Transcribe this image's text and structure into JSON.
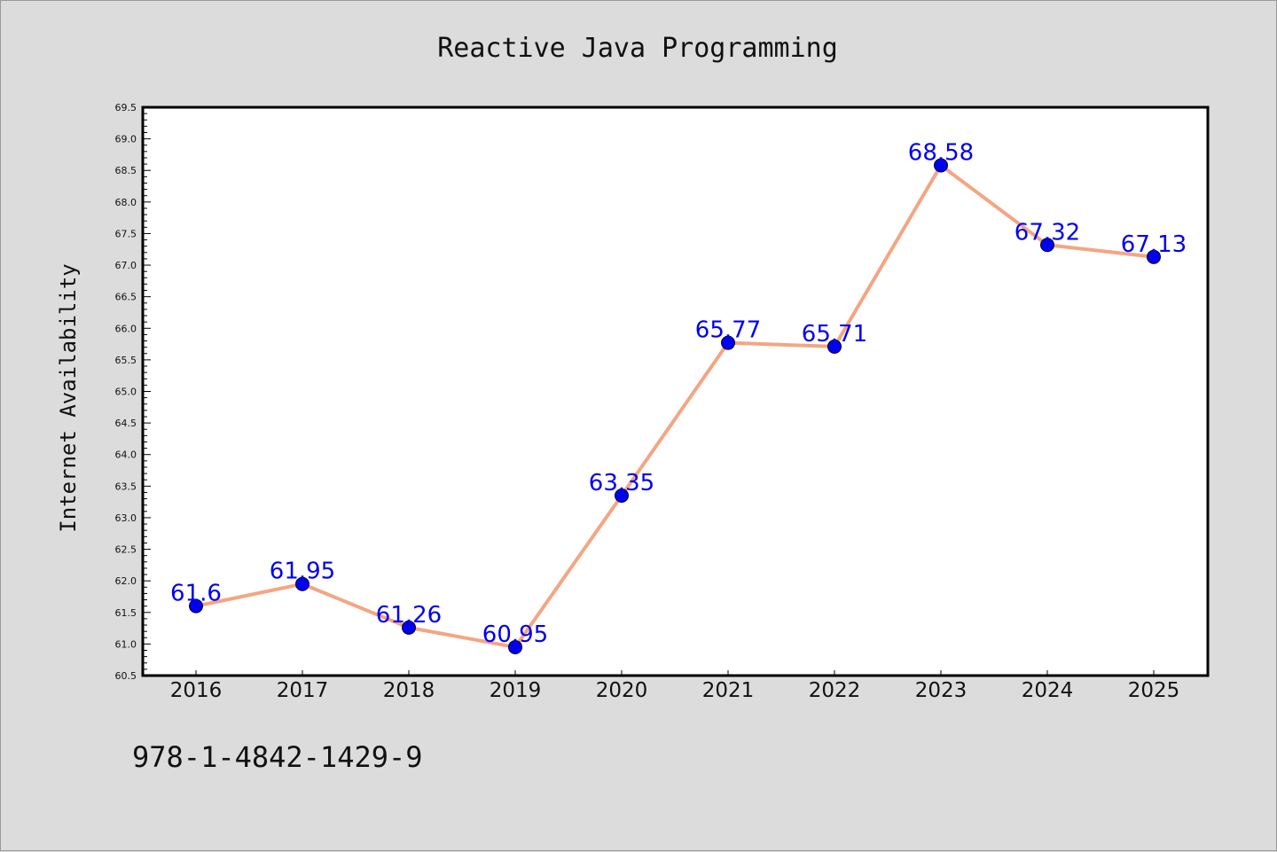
{
  "chart_data": {
    "type": "line",
    "title": "Reactive Java Programming",
    "xlabel": "",
    "ylabel": "Internet Availability",
    "categories": [
      "2016",
      "2017",
      "2018",
      "2019",
      "2020",
      "2021",
      "2022",
      "2023",
      "2024",
      "2025"
    ],
    "series": [
      {
        "values": [
          61.6,
          61.95,
          61.26,
          60.95,
          63.35,
          65.77,
          65.71,
          68.58,
          67.32,
          67.13
        ]
      }
    ],
    "data_labels": [
      "61.6",
      "61.95",
      "61.26",
      "60.95",
      "63.35",
      "65.77",
      "65.71",
      "68.58",
      "67.32",
      "67.13"
    ],
    "ylim": [
      60.5,
      69.5
    ],
    "y_ticks": [
      "60.5",
      "61.0",
      "61.5",
      "62.0",
      "62.5",
      "63.0",
      "63.5",
      "64.0",
      "64.5",
      "65.0",
      "65.5",
      "66.0",
      "66.5",
      "67.0",
      "67.5",
      "68.0",
      "68.5",
      "69.0",
      "69.5"
    ],
    "grid": false,
    "legend": "none",
    "colors": {
      "line": "#f4a582",
      "marker": "#0000ee",
      "data_label": "#0000ee",
      "page_background": "#dcdcdc",
      "plot_background": "#ffffff"
    }
  },
  "footer": {
    "isbn": "978-1-4842-1429-9"
  }
}
